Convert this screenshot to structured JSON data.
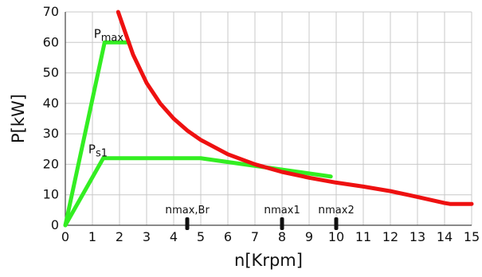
{
  "chart_data": {
    "type": "line",
    "xlabel": "n[Krpm]",
    "ylabel": "P[kW]",
    "xlim": [
      0,
      15
    ],
    "ylim": [
      0,
      70
    ],
    "x_ticks": [
      0,
      1,
      2,
      3,
      4,
      5,
      6,
      7,
      8,
      9,
      10,
      11,
      12,
      13,
      14,
      15
    ],
    "y_ticks": [
      0,
      10,
      20,
      30,
      40,
      50,
      60,
      70
    ],
    "grid": true,
    "series": [
      {
        "name": "Pmax",
        "color": "#33ee22",
        "x": [
          0,
          1.45,
          2.35
        ],
        "y": [
          0,
          60,
          60
        ]
      },
      {
        "name": "Ps1",
        "color": "#33ee22",
        "x": [
          0,
          1.4,
          5,
          9.8
        ],
        "y": [
          0,
          22,
          22,
          16
        ]
      },
      {
        "color": "#ee1111",
        "x": [
          1.95,
          2.2,
          2.5,
          3,
          3.5,
          4,
          4.5,
          5,
          6,
          7,
          8,
          9,
          10,
          11,
          12,
          13,
          14,
          14.2,
          15
        ],
        "y": [
          70,
          63.6,
          56,
          46.7,
          40,
          35,
          31.1,
          28,
          23.3,
          20,
          17.5,
          15.6,
          14,
          12.7,
          11.2,
          9.3,
          7.3,
          7,
          7
        ]
      }
    ],
    "annotations": [
      {
        "main": "P",
        "sub": "max",
        "x": 1.05,
        "y": 61.5
      },
      {
        "main": "P",
        "sub": "s1",
        "x": 0.85,
        "y": 23.7
      },
      {
        "main": "",
        "sub": "max,Br",
        "prefix": "n",
        "x": 4.5,
        "marker": true
      },
      {
        "main": "",
        "sub": "max1",
        "prefix": "n",
        "x": 8.0,
        "marker": true
      },
      {
        "main": "",
        "sub": "max2",
        "prefix": "n",
        "x": 10.0,
        "marker": true
      }
    ]
  }
}
